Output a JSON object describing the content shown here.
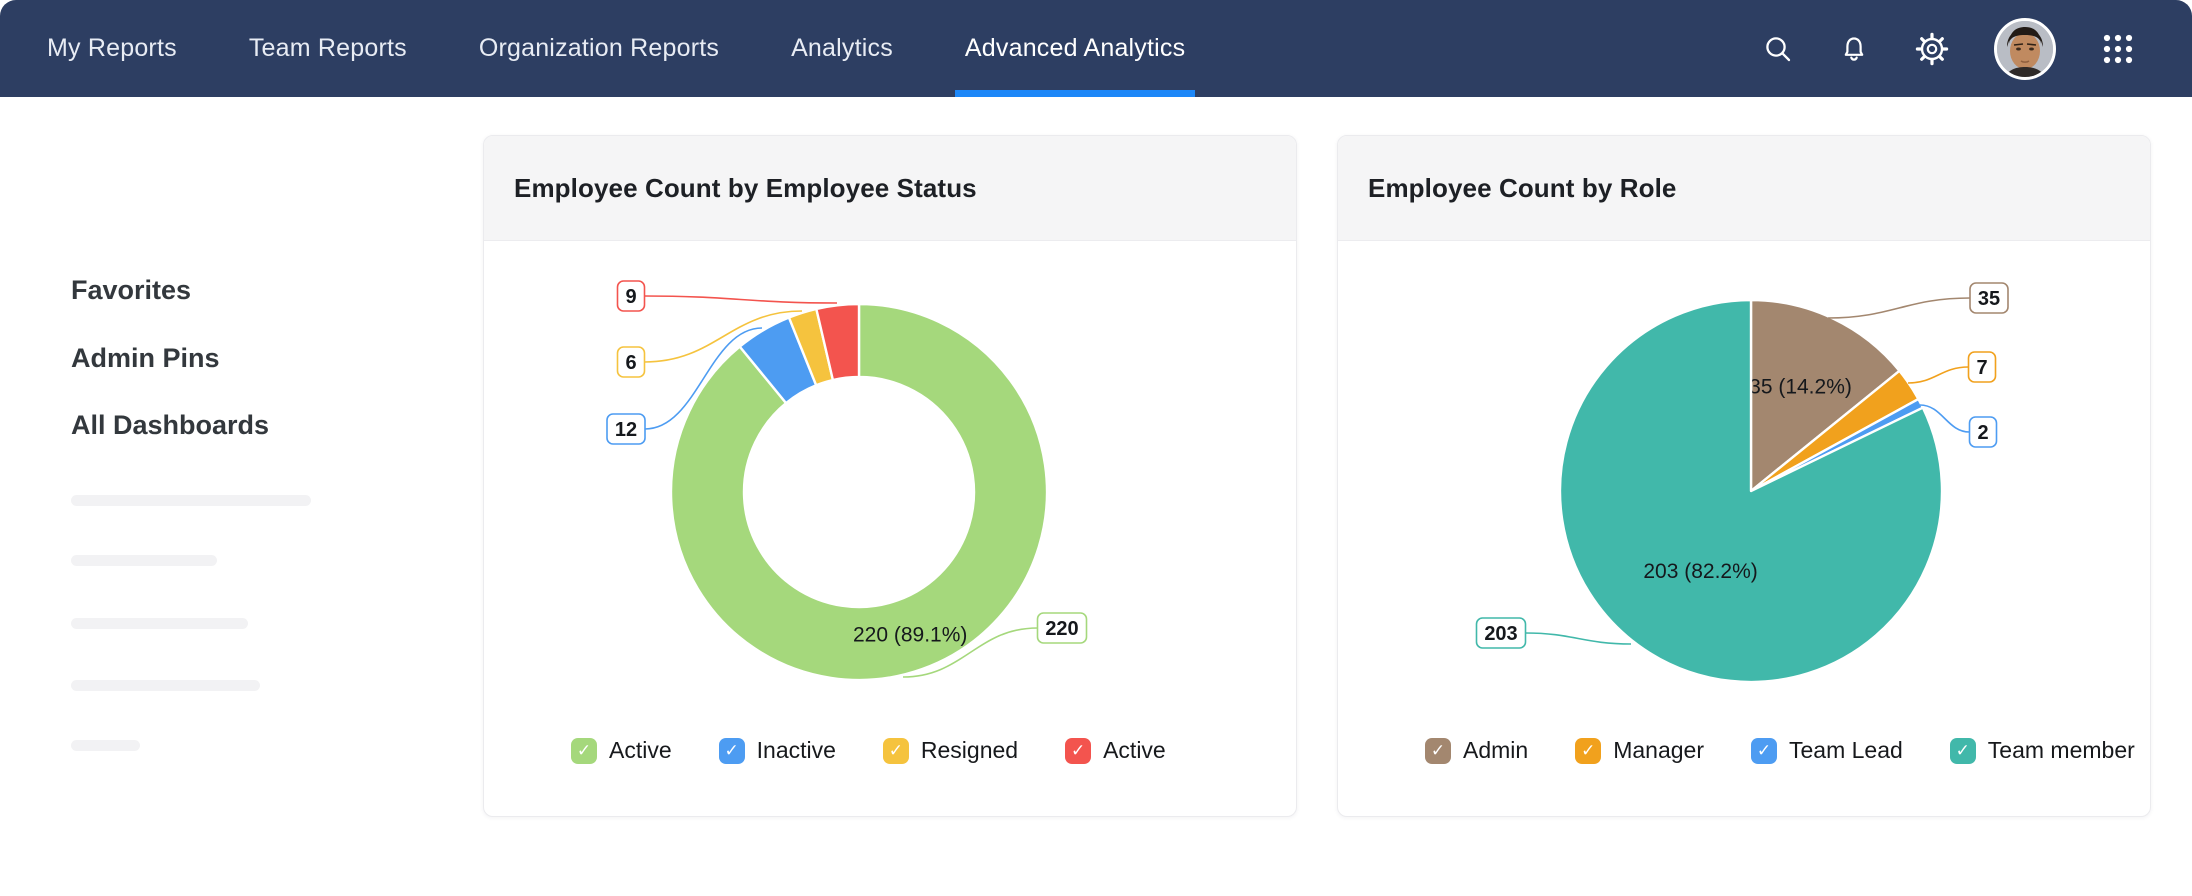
{
  "nav": {
    "tabs": [
      {
        "label": "My Reports",
        "active": false
      },
      {
        "label": "Team Reports",
        "active": false
      },
      {
        "label": "Organization Reports",
        "active": false
      },
      {
        "label": "Analytics",
        "active": false
      },
      {
        "label": "Advanced Analytics",
        "active": true
      }
    ],
    "icons": [
      "search-icon",
      "notifications-bell-icon",
      "settings-gear-icon",
      "user-avatar",
      "apps-grid-icon"
    ],
    "colors": {
      "bar": "#2d3e62",
      "active_underline": "#1c87f8"
    }
  },
  "sidebar": {
    "items": [
      {
        "label": "Favorites"
      },
      {
        "label": "Admin Pins"
      },
      {
        "label": "All Dashboards"
      }
    ]
  },
  "chart_data": [
    {
      "type": "pie",
      "variant": "donut",
      "title": "Employee Count by Employee Status",
      "legend_position": "bottom",
      "slices": [
        {
          "label": "Active",
          "value": 220,
          "color": "#a5d87c",
          "inner_label": "220 (89.1%)",
          "callout": "220"
        },
        {
          "label": "Inactive",
          "value": 12,
          "color": "#4d9cf2",
          "callout": "12"
        },
        {
          "label": "Resigned",
          "value": 6,
          "color": "#f5c33e",
          "callout": "6"
        },
        {
          "label": "Active",
          "value": 9,
          "color": "#f3544e",
          "callout": "9"
        }
      ]
    },
    {
      "type": "pie",
      "variant": "pie",
      "title": "Employee Count by Role",
      "legend_position": "bottom",
      "slices": [
        {
          "label": "Admin",
          "value": 35,
          "color": "#a3876f",
          "inner_label": "35 (14.2%)",
          "callout": "35"
        },
        {
          "label": "Manager",
          "value": 7,
          "color": "#f1a11d",
          "callout": "7"
        },
        {
          "label": "Team Lead",
          "value": 2,
          "color": "#4d9cf2",
          "callout": "2"
        },
        {
          "label": "Team member",
          "value": 203,
          "color": "#41b8aa",
          "inner_label": "203 (82.2%)",
          "callout": "203"
        }
      ]
    }
  ]
}
